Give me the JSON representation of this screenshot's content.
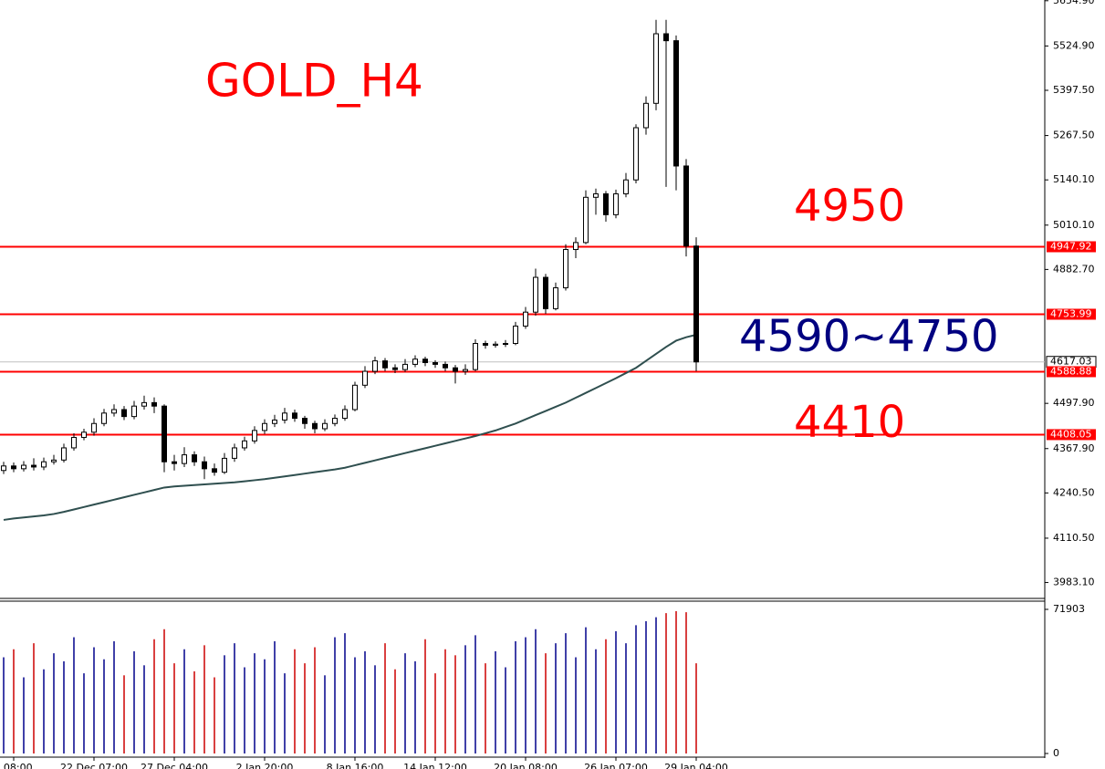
{
  "chart_data": {
    "type": "candlestick",
    "title": "GOLD_H4",
    "title_color": "#ff0000",
    "annotations": [
      {
        "text": "4950",
        "color": "#ff0000"
      },
      {
        "text": "4590~4750",
        "color": "#000080"
      },
      {
        "text": "4410",
        "color": "#ff0000"
      }
    ],
    "categories": [
      null,
      "c 08:00",
      null,
      null,
      null,
      null,
      null,
      null,
      null,
      "22 Dec 07:00",
      null,
      null,
      null,
      null,
      null,
      null,
      null,
      "27 Dec 04:00",
      null,
      null,
      null,
      null,
      null,
      null,
      null,
      null,
      "2 Jan 20:00",
      null,
      null,
      null,
      null,
      null,
      null,
      null,
      null,
      "8 Jan 16:00",
      null,
      null,
      null,
      null,
      null,
      null,
      null,
      "14 Jan 12:00",
      null,
      null,
      null,
      null,
      null,
      null,
      null,
      null,
      "20 Jan 08:00",
      null,
      null,
      null,
      null,
      null,
      null,
      null,
      null,
      "26 Jan 07:00",
      null,
      null,
      null,
      null,
      null,
      null,
      null,
      "29 Jan 04:00"
    ],
    "open": [
      4305,
      4318,
      4310,
      4320,
      4315,
      4330,
      4335,
      4370,
      4400,
      4415,
      4440,
      4470,
      4480,
      4460,
      4490,
      4500,
      4490,
      4330,
      4325,
      4350,
      4330,
      4310,
      4300,
      4340,
      4370,
      4390,
      4420,
      4440,
      4450,
      4470,
      4455,
      4440,
      4425,
      4440,
      4455,
      4480,
      4550,
      4590,
      4620,
      4600,
      4595,
      4610,
      4625,
      4615,
      4610,
      4600,
      4590,
      4595,
      4670,
      4665,
      4668,
      4670,
      4720,
      4760,
      4860,
      4770,
      4830,
      4940,
      4960,
      5090,
      5100,
      5040,
      5100,
      5140,
      5290,
      5360,
      5560,
      5540,
      5180,
      4950
    ],
    "high": [
      4330,
      4328,
      4332,
      4340,
      4342,
      4350,
      4382,
      4412,
      4425,
      4455,
      4482,
      4495,
      4490,
      4505,
      4520,
      4515,
      4495,
      4350,
      4372,
      4360,
      4345,
      4325,
      4355,
      4382,
      4402,
      4432,
      4452,
      4465,
      4485,
      4480,
      4462,
      4448,
      4452,
      4466,
      4492,
      4560,
      4605,
      4632,
      4628,
      4610,
      4625,
      4636,
      4632,
      4622,
      4618,
      4608,
      4610,
      4682,
      4678,
      4676,
      4680,
      4732,
      4775,
      4885,
      4870,
      4845,
      4955,
      4975,
      5110,
      5115,
      5108,
      5112,
      5160,
      5300,
      5380,
      5600,
      5600,
      5555,
      5200,
      4975
    ],
    "low": [
      4295,
      4300,
      4302,
      4305,
      4306,
      4322,
      4328,
      4362,
      4392,
      4405,
      4432,
      4460,
      4450,
      4452,
      4480,
      4470,
      4300,
      4305,
      4315,
      4318,
      4280,
      4290,
      4295,
      4330,
      4362,
      4382,
      4410,
      4430,
      4440,
      4445,
      4425,
      4412,
      4418,
      4432,
      4448,
      4475,
      4542,
      4582,
      4590,
      4585,
      4588,
      4602,
      4605,
      4600,
      4590,
      4555,
      4580,
      4590,
      4655,
      4658,
      4660,
      4665,
      4712,
      4750,
      4755,
      4765,
      4822,
      4915,
      4955,
      5040,
      5020,
      5030,
      5090,
      5130,
      5270,
      5340,
      5120,
      5110,
      4920,
      4590
    ],
    "close": [
      4318,
      4310,
      4320,
      4315,
      4330,
      4335,
      4370,
      4400,
      4415,
      4440,
      4470,
      4480,
      4460,
      4490,
      4500,
      4490,
      4330,
      4325,
      4350,
      4330,
      4310,
      4300,
      4340,
      4370,
      4390,
      4420,
      4440,
      4450,
      4470,
      4455,
      4440,
      4425,
      4440,
      4455,
      4480,
      4550,
      4590,
      4620,
      4600,
      4595,
      4610,
      4625,
      4615,
      4610,
      4600,
      4590,
      4595,
      4670,
      4665,
      4668,
      4670,
      4720,
      4760,
      4860,
      4770,
      4830,
      4940,
      4960,
      5090,
      5100,
      5040,
      5100,
      5140,
      5290,
      5360,
      5560,
      5540,
      5180,
      4950,
      4617
    ],
    "ma": {
      "color": "#2f4f4f",
      "values": [
        4163,
        4167,
        4170,
        4173,
        4176,
        4180,
        4186,
        4193,
        4200,
        4207,
        4214,
        4221,
        4228,
        4235,
        4242,
        4249,
        4256,
        4259,
        4261,
        4263,
        4265,
        4267,
        4269,
        4271,
        4274,
        4277,
        4280,
        4284,
        4288,
        4292,
        4296,
        4300,
        4304,
        4308,
        4313,
        4320,
        4327,
        4334,
        4341,
        4348,
        4355,
        4362,
        4369,
        4376,
        4383,
        4390,
        4397,
        4404,
        4412,
        4420,
        4430,
        4440,
        4452,
        4464,
        4476,
        4488,
        4500,
        4514,
        4528,
        4542,
        4556,
        4570,
        4585,
        4600,
        4620,
        4640,
        4660,
        4678,
        4688,
        4695
      ]
    },
    "up_color": "#ffffff",
    "down_color": "#000000",
    "levels": [
      4947.92,
      4753.99,
      4588.88,
      4408.05
    ],
    "level_color": "#ff0000",
    "current_price": 4617.03,
    "ylim": [
      3940,
      5657
    ],
    "yticks": [
      {
        "value": 5654.9,
        "label": "5654.90"
      },
      {
        "value": 5524.9,
        "label": "5524.90"
      },
      {
        "value": 5397.5,
        "label": "5397.50"
      },
      {
        "value": 5267.5,
        "label": "5267.50"
      },
      {
        "value": 5140.1,
        "label": "5140.10"
      },
      {
        "value": 5010.1,
        "label": "5010.10"
      },
      {
        "value": 4882.7,
        "label": "4882.70"
      },
      {
        "value": 4497.9,
        "label": "4497.90"
      },
      {
        "value": 4367.9,
        "label": "4367.90"
      },
      {
        "value": 4240.5,
        "label": "4240.50"
      },
      {
        "value": 4110.5,
        "label": "4110.50"
      },
      {
        "value": 3983.1,
        "label": "3983.10"
      }
    ],
    "volume": {
      "up_color": "#00008b",
      "down_color": "#cc0000",
      "ylim": [
        0,
        71903
      ],
      "yticks": [
        71903,
        0
      ],
      "values": [
        48000,
        52000,
        38000,
        55000,
        42000,
        50000,
        46000,
        58000,
        40000,
        53000,
        47000,
        56000,
        39000,
        51000,
        44000,
        57000,
        62000,
        45000,
        52000,
        41000,
        54000,
        38000,
        49000,
        55000,
        43000,
        50000,
        47000,
        56000,
        40000,
        52000,
        45000,
        53000,
        39000,
        58000,
        60000,
        48000,
        51000,
        44000,
        55000,
        42000,
        50000,
        46000,
        57000,
        40000,
        52000,
        49000,
        54000,
        59000,
        45000,
        51000,
        43000,
        56000,
        58000,
        62000,
        50000,
        55000,
        60000,
        48000,
        63000,
        52000,
        57000,
        61000,
        55000,
        64000,
        66000,
        68000,
        70000,
        71000,
        70500,
        45000
      ]
    }
  }
}
